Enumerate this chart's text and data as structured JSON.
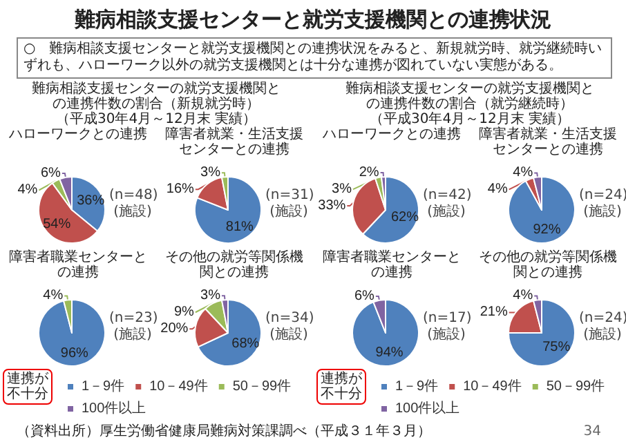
{
  "chart_data": [
    {
      "type": "other",
      "title": "難病相談支援センターと就労支援機関との連携状況",
      "annotations": [
        "○　難病相談支援センターと就労支援機関との連携状況をみると、新規就労時、就労継続時いずれも、ハローワーク以外の就労支援機関とは十分な連携が図れていない実態がある。",
        "難病相談支援センターの就労支援機関との連携件数の割合（新規就労時）",
        "（平成30年4月～12月末 実績）",
        "難病相談支援センターの就労支援機関との連携件数の割合（就労継続時）",
        "（平成30年4月～12月末 実績）",
        "（資料出所）厚生労働省健康局難病対策課調べ（平成３１年３月）",
        "34"
      ]
    },
    {
      "type": "pie",
      "title": "ハローワークとの連携",
      "categories": [
        null,
        null,
        null,
        null
      ],
      "values": [
        36,
        54,
        4,
        6
      ],
      "value_labels": [
        "36%",
        "54%",
        "4%",
        "6%"
      ],
      "colors": [
        "#4f81bd",
        "#c0504d",
        "#9bbb59",
        "#8064a2"
      ],
      "annotations": [
        "(n=48)",
        "(施設)"
      ]
    },
    {
      "type": "pie",
      "title": "障害者就業・生活支援センターとの連携",
      "categories": [
        null,
        null,
        null,
        null
      ],
      "values": [
        81,
        16,
        3,
        null
      ],
      "value_labels": [
        "81%",
        "16%",
        "3%",
        null
      ],
      "colors": [
        "#4f81bd",
        "#c0504d",
        "#9bbb59",
        "#8064a2"
      ],
      "annotations": [
        "(n=31)",
        "(施設)"
      ]
    },
    {
      "type": "pie",
      "title": "障害者職業センターとの連携",
      "categories": [
        "1－9件",
        "10－49件",
        "50－99件",
        "100件以上"
      ],
      "values": [
        96,
        null,
        4,
        null
      ],
      "value_labels": [
        "96%",
        null,
        "4%",
        null
      ],
      "colors": [
        "#4f81bd",
        "#c0504d",
        "#9bbb59",
        "#8064a2"
      ],
      "legend": "bottom",
      "annotations": [
        "(n=23)",
        "(施設)",
        "連携が不十分"
      ]
    },
    {
      "type": "pie",
      "title": "その他の就労等関係機関との連携",
      "categories": [
        null,
        null,
        null,
        null
      ],
      "values": [
        68,
        20,
        9,
        3
      ],
      "value_labels": [
        "68%",
        "20%",
        "9%",
        "3%"
      ],
      "colors": [
        "#4f81bd",
        "#c0504d",
        "#9bbb59",
        "#8064a2"
      ],
      "annotations": [
        "(n=34)",
        "(施設)"
      ]
    },
    {
      "type": "pie",
      "title": "ハローワークとの連携",
      "categories": [
        null,
        null,
        null,
        null
      ],
      "values": [
        62,
        33,
        3,
        2
      ],
      "value_labels": [
        "62%",
        "33%",
        "3%",
        "2%"
      ],
      "colors": [
        "#4f81bd",
        "#c0504d",
        "#9bbb59",
        "#8064a2"
      ],
      "annotations": [
        "(n=42)",
        "(施設)"
      ]
    },
    {
      "type": "pie",
      "title": "障害者就業・生活支援センターとの連携",
      "categories": [
        null,
        null,
        null,
        null
      ],
      "values": [
        92,
        4,
        null,
        4
      ],
      "value_labels": [
        "92%",
        "4%",
        null,
        "4%"
      ],
      "colors": [
        "#4f81bd",
        "#c0504d",
        "#9bbb59",
        "#8064a2"
      ],
      "annotations": [
        "(n=24)",
        "(施設)"
      ]
    },
    {
      "type": "pie",
      "title": "障害者職業センターとの連携",
      "categories": [
        "1－9件",
        "10－49件",
        "50－99件",
        "100件以上"
      ],
      "values": [
        94,
        null,
        null,
        6
      ],
      "value_labels": [
        "94%",
        null,
        null,
        "6%"
      ],
      "colors": [
        "#4f81bd",
        "#c0504d",
        "#9bbb59",
        "#8064a2"
      ],
      "legend": "bottom",
      "annotations": [
        "(n=17)",
        "(施設)",
        "連携が不十分"
      ]
    },
    {
      "type": "pie",
      "title": "その他の就労等関係機関との連携",
      "categories": [
        null,
        null,
        null,
        null
      ],
      "values": [
        75,
        21,
        null,
        4
      ],
      "value_labels": [
        "75%",
        "21%",
        null,
        "4%"
      ],
      "colors": [
        "#4f81bd",
        "#c0504d",
        "#9bbb59",
        "#8064a2"
      ],
      "annotations": [
        "(n=24)",
        "(施設)"
      ]
    }
  ]
}
